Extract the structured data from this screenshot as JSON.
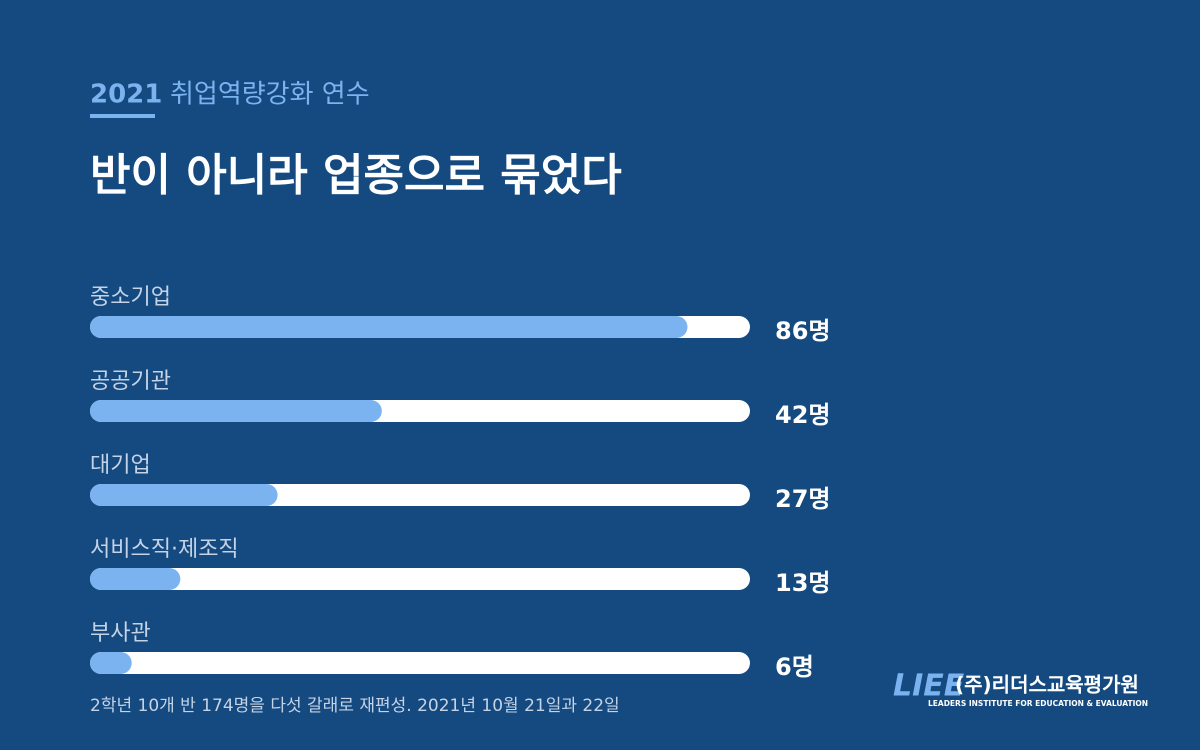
{
  "chart_data": {
    "type": "hbar",
    "kicker_year": "2021",
    "kicker": "취업역량강화 연수",
    "title": "반이 아니라 업종으로 묶었다",
    "categories": [
      "중소기업",
      "공공기관",
      "대기업",
      "서비스직·제조직",
      "부사관"
    ],
    "values": [
      86,
      42,
      27,
      13,
      6
    ],
    "value_labels": [
      "86명",
      "42명",
      "27명",
      "13명",
      "6명"
    ],
    "color": "#7ab3f0",
    "track_color": "#ffffff",
    "xlim": [
      0,
      95
    ],
    "note": "2학년 10개 반 174명을 다섯 갈래로 재편성. 2021년 10월 21일과 22일",
    "logo": {
      "mark": "LIEE",
      "name": "(주)리더스교육평가원",
      "tagline": "LEADERS INSTITUTE FOR EDUCATION & EVALUATION"
    }
  }
}
